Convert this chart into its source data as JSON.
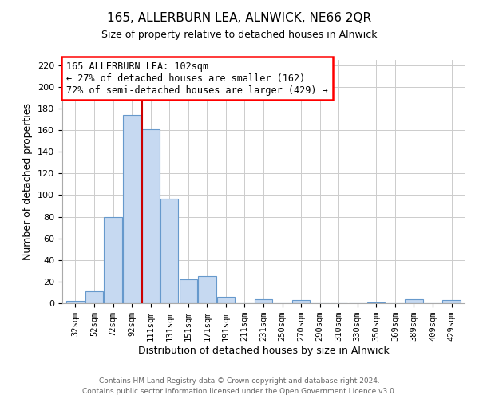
{
  "title": "165, ALLERBURN LEA, ALNWICK, NE66 2QR",
  "subtitle": "Size of property relative to detached houses in Alnwick",
  "xlabel": "Distribution of detached houses by size in Alnwick",
  "ylabel": "Number of detached properties",
  "bar_labels": [
    "32sqm",
    "52sqm",
    "72sqm",
    "92sqm",
    "111sqm",
    "131sqm",
    "151sqm",
    "171sqm",
    "191sqm",
    "211sqm",
    "231sqm",
    "250sqm",
    "270sqm",
    "290sqm",
    "310sqm",
    "330sqm",
    "350sqm",
    "369sqm",
    "389sqm",
    "409sqm",
    "429sqm"
  ],
  "bar_values": [
    2,
    11,
    80,
    174,
    161,
    97,
    22,
    25,
    6,
    0,
    4,
    0,
    3,
    0,
    0,
    0,
    1,
    0,
    4,
    0,
    3
  ],
  "bar_color": "#c6d9f1",
  "bar_edge_color": "#6699cc",
  "ylim": [
    0,
    225
  ],
  "yticks": [
    0,
    20,
    40,
    60,
    80,
    100,
    120,
    140,
    160,
    180,
    200,
    220
  ],
  "vline_color": "#cc0000",
  "annotation_title": "165 ALLERBURN LEA: 102sqm",
  "annotation_line1": "← 27% of detached houses are smaller (162)",
  "annotation_line2": "72% of semi-detached houses are larger (429) →",
  "footer1": "Contains HM Land Registry data © Crown copyright and database right 2024.",
  "footer2": "Contains public sector information licensed under the Open Government Licence v3.0.",
  "grid_color": "#cccccc",
  "background_color": "#ffffff"
}
